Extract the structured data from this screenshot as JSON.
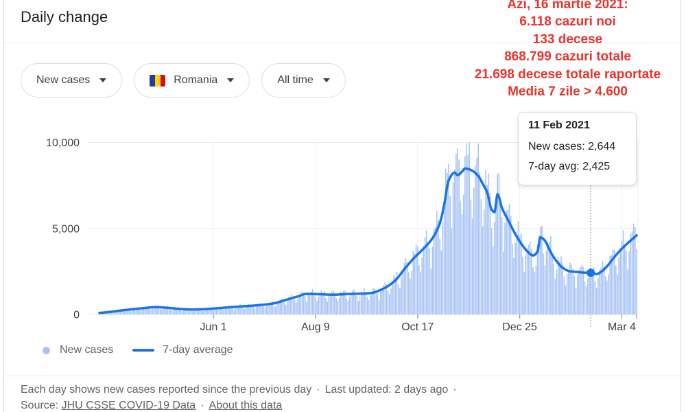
{
  "title": "Daily change",
  "filters": [
    {
      "label": "New cases"
    },
    {
      "label": "Romania",
      "icon": "romania-flag"
    },
    {
      "label": "All time"
    }
  ],
  "annotation": {
    "color": "#e8352d",
    "lines": [
      "Azi, 16 martie 2021:",
      "6.118 cazuri noi",
      "133 decese",
      "868.799 cazuri totale",
      "21.698 decese totale raportate",
      "Media 7 zile > 4.600"
    ]
  },
  "tooltip": {
    "date": "11 Feb 2021",
    "rows": [
      "New cases: 2,644",
      "7-day avg: 2,425"
    ]
  },
  "legend": [
    {
      "label": "New cases",
      "swatch": "dot",
      "color": "#a8c4f5"
    },
    {
      "label": "7-day average",
      "swatch": "line",
      "color": "#1a73e8"
    }
  ],
  "footer": {
    "line1": "Each day shows new cases reported since the previous day",
    "sep": "·",
    "updated": "Last updated: 2 days ago",
    "source_label": "Source:",
    "source_link": "JHU CSSE COVID-19 Data",
    "about_link": "About this data"
  },
  "chart_data": {
    "type": "bar",
    "overlay": "line",
    "title": "Daily change",
    "x_axis": {
      "start_date": "2020-03-16",
      "end_date": "2021-03-14",
      "tick_labels": [
        "Jun 1",
        "Aug 9",
        "Oct 17",
        "Dec 25",
        "Mar 4"
      ],
      "tick_days": [
        77,
        146,
        215,
        284,
        353
      ],
      "end_tick_day": 363
    },
    "y_axis": {
      "tick_labels": [
        "0",
        "5,000",
        "10,000"
      ],
      "tick_values": [
        0,
        5000,
        10000
      ],
      "range": [
        0,
        10400
      ]
    },
    "series": [
      {
        "name": "New cases",
        "type": "bar",
        "color": "#a8c4f5",
        "note": "daily bars estimated as 7-day average × weekday reporting pattern",
        "weekday_factors": [
          0.66,
          0.88,
          1.06,
          1.14,
          1.18,
          1.1,
          0.84
        ],
        "overrides": {
          "332": 2644
        }
      },
      {
        "name": "7-day average",
        "type": "line",
        "color": "#1a73e8",
        "points_day_value": [
          [
            0,
            90
          ],
          [
            8,
            160
          ],
          [
            16,
            250
          ],
          [
            24,
            320
          ],
          [
            31,
            380
          ],
          [
            38,
            430
          ],
          [
            46,
            390
          ],
          [
            55,
            320
          ],
          [
            62,
            290
          ],
          [
            70,
            310
          ],
          [
            82,
            380
          ],
          [
            92,
            450
          ],
          [
            103,
            510
          ],
          [
            112,
            580
          ],
          [
            118,
            650
          ],
          [
            126,
            850
          ],
          [
            134,
            1050
          ],
          [
            140,
            1200
          ],
          [
            148,
            1180
          ],
          [
            158,
            1150
          ],
          [
            168,
            1190
          ],
          [
            176,
            1210
          ],
          [
            183,
            1240
          ],
          [
            192,
            1510
          ],
          [
            200,
            1990
          ],
          [
            206,
            2630
          ],
          [
            212,
            3230
          ],
          [
            219,
            3830
          ],
          [
            225,
            4430
          ],
          [
            230,
            5300
          ],
          [
            233,
            6400
          ],
          [
            236,
            7800
          ],
          [
            240,
            8250
          ],
          [
            242,
            8100
          ],
          [
            245,
            8300
          ],
          [
            247,
            8490
          ],
          [
            251,
            8400
          ],
          [
            256,
            8050
          ],
          [
            259,
            7600
          ],
          [
            262,
            7100
          ],
          [
            265,
            6100
          ],
          [
            267,
            5950
          ],
          [
            269,
            7000
          ],
          [
            272,
            6200
          ],
          [
            277,
            5350
          ],
          [
            281,
            4680
          ],
          [
            286,
            4000
          ],
          [
            290,
            3600
          ],
          [
            293,
            3430
          ],
          [
            296,
            3650
          ],
          [
            298,
            4480
          ],
          [
            301,
            4300
          ],
          [
            304,
            3780
          ],
          [
            308,
            3200
          ],
          [
            313,
            2720
          ],
          [
            318,
            2510
          ],
          [
            323,
            2470
          ],
          [
            328,
            2430
          ],
          [
            332,
            2425
          ],
          [
            336,
            2350
          ],
          [
            339,
            2480
          ],
          [
            343,
            2800
          ],
          [
            347,
            3230
          ],
          [
            351,
            3640
          ],
          [
            355,
            3990
          ],
          [
            359,
            4300
          ],
          [
            363,
            4600
          ]
        ]
      }
    ],
    "highlight": {
      "day": 332,
      "date": "11 Feb 2021",
      "new_cases": 2644,
      "seven_day_avg": 2425
    }
  }
}
